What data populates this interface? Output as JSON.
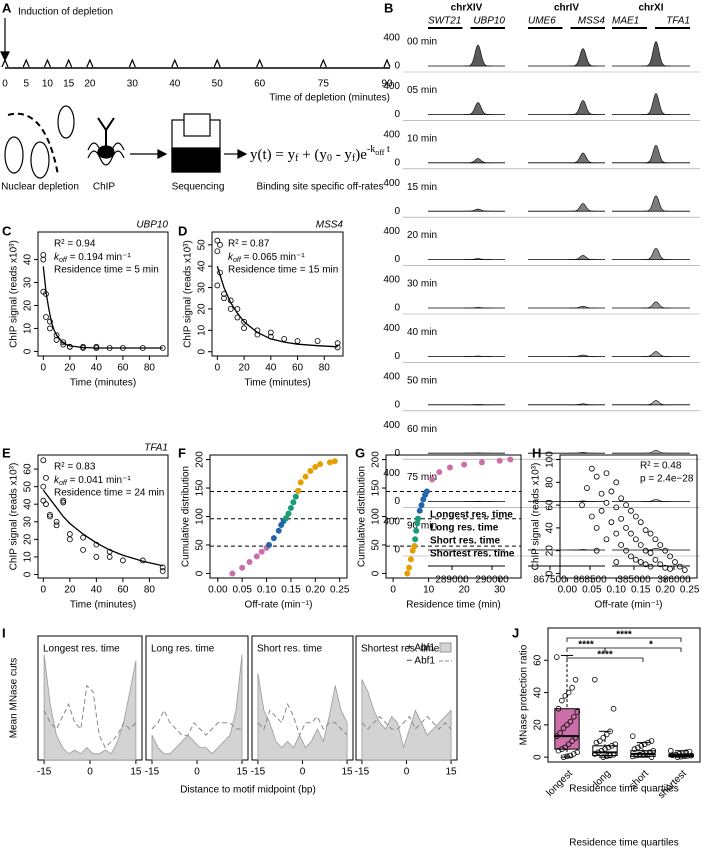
{
  "panel_labels": [
    "A",
    "B",
    "C",
    "D",
    "E",
    "F",
    "G",
    "H",
    "I",
    "J"
  ],
  "a": {
    "induction": "Induction of depletion",
    "xlim": [
      0,
      90
    ],
    "ticks": [
      0,
      5,
      10,
      15,
      20,
      30,
      40,
      50,
      60,
      75,
      90
    ],
    "axis_label": "Time of depletion (minutes)",
    "steps": [
      "Nuclear depletion",
      "ChIP",
      "Sequencing",
      "Binding site specific off-rates"
    ],
    "equation": [
      {
        "text": "y(t) = y"
      },
      {
        "text": "f",
        "pos": "sub"
      },
      {
        "text": " + (y"
      },
      {
        "text": "0",
        "pos": "sub"
      },
      {
        "text": " - y"
      },
      {
        "text": "f",
        "pos": "sub"
      },
      {
        "text": ")e"
      },
      {
        "text": "-k",
        "pos": "sup"
      },
      {
        "text": "off",
        "pos": "supsub"
      },
      {
        "text": " t",
        "pos": "sup"
      }
    ]
  },
  "b": {
    "chromosomes": [
      "chrXIV",
      "chrIV",
      "chrXI"
    ],
    "genes": [
      [
        "SWT21",
        "UBP10"
      ],
      [
        "UME6",
        "MSS4"
      ],
      [
        "MAE1",
        "TFA1"
      ]
    ],
    "ylim": [
      0,
      400
    ],
    "yticks": [
      0,
      400
    ],
    "xlims": [
      [
        288400,
        290325
      ],
      [
        866950,
        868875
      ],
      [
        384450,
        386400
      ]
    ],
    "xticks": [
      [
        289000,
        290000
      ],
      [
        867500,
        868500
      ],
      [
        385000,
        386000
      ]
    ],
    "peak_x": [
      289650,
      868325,
      385550
    ],
    "rows": [
      {
        "label": "00 min",
        "peaks": [
          300,
          250,
          350
        ]
      },
      {
        "label": "05 min",
        "peaks": [
          170,
          200,
          300
        ]
      },
      {
        "label": "10 min",
        "peaks": [
          60,
          140,
          250
        ]
      },
      {
        "label": "15 min",
        "peaks": [
          30,
          110,
          220
        ]
      },
      {
        "label": "20 min",
        "peaks": [
          15,
          60,
          160
        ]
      },
      {
        "label": "30 min",
        "peaks": [
          8,
          25,
          90
        ]
      },
      {
        "label": "40 min",
        "peaks": [
          5,
          20,
          70
        ]
      },
      {
        "label": "50 min",
        "peaks": [
          5,
          15,
          60
        ]
      },
      {
        "label": "60 min",
        "peaks": [
          5,
          12,
          40
        ]
      },
      {
        "label": "75 min",
        "peaks": [
          5,
          10,
          30
        ]
      },
      {
        "label": "90 min",
        "peaks": [
          5,
          8,
          25
        ]
      }
    ]
  },
  "c": {
    "gene": "UBP10",
    "xlabel": "Time (minutes)",
    "ylabel": "ChIP signal (reads x10³)",
    "r2": "R² = 0.94",
    "k": "k",
    "off": "off",
    "koff": " = 0.194 min⁻¹",
    "residence": "Residence time = 5 min",
    "xlim": [
      -4,
      94
    ],
    "ylim": [
      -2,
      52
    ],
    "xticks": [
      0,
      20,
      40,
      60,
      80
    ],
    "yticks": [
      0,
      10,
      20,
      30,
      40
    ],
    "points": {
      "x": [
        0,
        0,
        0,
        2,
        2,
        5,
        5,
        10,
        10,
        15,
        15,
        20,
        20,
        30,
        30,
        40,
        40,
        50,
        60,
        75,
        90
      ],
      "y": [
        42,
        40,
        26,
        25,
        15,
        13,
        10,
        7,
        5,
        4,
        3,
        2,
        2,
        2,
        1.5,
        2,
        1.5,
        1.5,
        1.5,
        1.5,
        1.5
      ]
    },
    "fit": {
      "x": [
        0,
        2,
        4,
        6,
        8,
        10,
        15,
        20,
        30,
        40,
        60,
        90
      ],
      "y": [
        37,
        26,
        19,
        13,
        9.5,
        7,
        3.6,
        2.4,
        1.7,
        1.5,
        1.5,
        1.5
      ]
    }
  },
  "d": {
    "gene": "MSS4",
    "xlabel": "Time (minutes)",
    "ylabel": "ChIP signal (reads x10³)",
    "r2": "R² = 0.87",
    "k": "k",
    "off": "off",
    "koff": " = 0.065 min⁻¹",
    "residence": "Residence time = 15 min",
    "xlim": [
      -4,
      94
    ],
    "ylim": [
      -2,
      56
    ],
    "xticks": [
      0,
      20,
      40,
      60,
      80
    ],
    "yticks": [
      0,
      10,
      20,
      30,
      40,
      50
    ],
    "points": {
      "x": [
        0,
        0,
        0,
        2,
        2,
        5,
        5,
        10,
        10,
        15,
        15,
        20,
        20,
        30,
        30,
        40,
        40,
        50,
        60,
        75,
        90,
        90
      ],
      "y": [
        52,
        47,
        31,
        50,
        37,
        27,
        25,
        24,
        20,
        20,
        16,
        14,
        11,
        8,
        10,
        7,
        9,
        6,
        5,
        5,
        2,
        4
      ]
    },
    "fit": {
      "x": [
        0,
        5,
        10,
        15,
        20,
        30,
        40,
        50,
        60,
        75,
        90
      ],
      "y": [
        40,
        30,
        23,
        18,
        14,
        9,
        6,
        4.5,
        3.5,
        2.8,
        2.3
      ]
    }
  },
  "e": {
    "gene": "TFA1",
    "xlabel": "Time (minutes)",
    "ylabel": "ChIP signal (reads x10³)",
    "r2": "R² = 0.83",
    "k": "k",
    "off": "off",
    "koff": " = 0.041 min⁻¹",
    "residence": "Residence time = 24 min",
    "xlim": [
      -4,
      94
    ],
    "ylim": [
      -2,
      68
    ],
    "xticks": [
      0,
      20,
      40,
      60,
      80
    ],
    "yticks": [
      0,
      10,
      20,
      30,
      40,
      50,
      60
    ],
    "points": {
      "x": [
        0,
        0,
        0,
        2,
        2,
        5,
        5,
        10,
        10,
        15,
        15,
        20,
        20,
        30,
        30,
        40,
        40,
        50,
        50,
        60,
        75,
        90,
        90
      ],
      "y": [
        65,
        50,
        42,
        55,
        40,
        34,
        33,
        30,
        28,
        41,
        42,
        23,
        20,
        21,
        14,
        17,
        10,
        10,
        13,
        8,
        8,
        4,
        2
      ]
    },
    "fit": {
      "x": [
        0,
        5,
        10,
        15,
        20,
        30,
        40,
        50,
        60,
        75,
        90
      ],
      "y": [
        48,
        43,
        38,
        33,
        29,
        23,
        18,
        14,
        11,
        7.5,
        5
      ]
    }
  },
  "f": {
    "xlabel": "Off-rate (min⁻¹)",
    "ylabel": "Cumulative distribution",
    "xlim": [
      -0.016,
      0.265
    ],
    "ylim": [
      -8,
      208
    ],
    "xticks": [
      {
        "value": 0,
        "label": "0.00"
      },
      {
        "value": 0.05,
        "label": "0.05"
      },
      {
        "value": 0.1,
        "label": "0.10"
      },
      {
        "value": 0.15,
        "label": "0.15"
      },
      {
        "value": 0.2,
        "label": "0.20"
      },
      {
        "value": 0.25,
        "label": "0.25"
      }
    ],
    "yticks": [
      0,
      50,
      100,
      150,
      200
    ],
    "hlines": [
      48,
      96,
      144
    ],
    "series": [
      {
        "color": "#cc6fa8",
        "x": [
          0.03,
          0.05,
          0.065,
          0.08,
          0.09,
          0.1,
          0.105
        ],
        "y": [
          0,
          10,
          20,
          30,
          38,
          45,
          50
        ]
      },
      {
        "color": "#2266aa",
        "x": [
          0.105,
          0.115,
          0.125,
          0.13,
          0.135,
          0.14
        ],
        "y": [
          50,
          62,
          75,
          85,
          92,
          97
        ]
      },
      {
        "color": "#1a9b79",
        "x": [
          0.14,
          0.145,
          0.15,
          0.155,
          0.16,
          0.165
        ],
        "y": [
          97,
          105,
          115,
          125,
          135,
          145
        ]
      },
      {
        "color": "#e69f00",
        "x": [
          0.165,
          0.17,
          0.18,
          0.19,
          0.2,
          0.21,
          0.23,
          0.24
        ],
        "y": [
          145,
          160,
          170,
          180,
          187,
          192,
          195,
          197
        ]
      }
    ]
  },
  "g": {
    "xlabel": "Residence time (min)",
    "ylabel": "Cumulative distribution",
    "xlim": [
      -2,
      36
    ],
    "ylim": [
      -8,
      208
    ],
    "xticks": [
      0,
      10,
      20,
      30
    ],
    "yticks": [
      0,
      50,
      100,
      150,
      200
    ],
    "hlines": [
      48,
      96,
      144
    ],
    "series": [
      {
        "name": "Longest res. time",
        "color": "#cc6fa8",
        "x": [
          9.5,
          11,
          13,
          16,
          20,
          25,
          30,
          33
        ],
        "y": [
          144,
          165,
          178,
          186,
          191,
          195,
          198,
          200
        ]
      },
      {
        "name": "Long res. time",
        "color": "#2266aa",
        "x": [
          7,
          7.5,
          8,
          8.5,
          9,
          9.5
        ],
        "y": [
          96,
          110,
          120,
          130,
          138,
          144
        ]
      },
      {
        "name": "Short res. time",
        "color": "#1a9b79",
        "x": [
          6,
          6.2,
          6.5,
          6.8,
          7
        ],
        "y": [
          48,
          60,
          75,
          88,
          96
        ]
      },
      {
        "name": "Shortest res. time",
        "color": "#e69f00",
        "x": [
          4,
          4.5,
          5,
          5.5,
          6
        ],
        "y": [
          0,
          10,
          25,
          40,
          48
        ]
      }
    ]
  },
  "h": {
    "xlabel": "Off-rate (min⁻¹)",
    "ylabel": "ChIP signal (reads x10³)",
    "r2": "R² = 0.48",
    "p": "p = 2.4e−28",
    "xlim": [
      -0.015,
      0.265
    ],
    "ylim": [
      -4,
      104
    ],
    "xticks": [
      {
        "value": 0,
        "label": "0.00"
      },
      {
        "value": 0.05,
        "label": "0.05"
      },
      {
        "value": 0.1,
        "label": "0.10"
      },
      {
        "value": 0.15,
        "label": "0.15"
      },
      {
        "value": 0.2,
        "label": "0.20"
      },
      {
        "value": 0.25,
        "label": "0.25"
      }
    ],
    "yticks": [
      0,
      20,
      40,
      60,
      80,
      100
    ],
    "points": {
      "x": [
        0.03,
        0.04,
        0.05,
        0.05,
        0.06,
        0.06,
        0.07,
        0.07,
        0.08,
        0.08,
        0.08,
        0.09,
        0.09,
        0.1,
        0.1,
        0.1,
        0.11,
        0.11,
        0.11,
        0.12,
        0.12,
        0.12,
        0.13,
        0.13,
        0.13,
        0.14,
        0.14,
        0.14,
        0.15,
        0.15,
        0.15,
        0.16,
        0.16,
        0.16,
        0.17,
        0.17,
        0.17,
        0.18,
        0.18,
        0.19,
        0.19,
        0.2,
        0.2,
        0.21,
        0.21,
        0.22,
        0.23,
        0.24,
        0.06,
        0.1
      ],
      "y": [
        60,
        75,
        92,
        50,
        85,
        40,
        70,
        55,
        88,
        62,
        30,
        72,
        45,
        80,
        58,
        35,
        66,
        48,
        25,
        60,
        40,
        20,
        55,
        35,
        15,
        50,
        30,
        12,
        45,
        25,
        10,
        38,
        20,
        8,
        35,
        18,
        6,
        30,
        12,
        25,
        8,
        20,
        5,
        15,
        4,
        10,
        6,
        3,
        20,
        10
      ]
    }
  },
  "i": {
    "ylabel": "Mean MNase cuts",
    "xlabel": "Distance to motif midpoint (bp)",
    "legend": [
      "+ Abf1",
      "− Abf1"
    ],
    "xlim": [
      -17,
      17
    ],
    "ylim": [
      0,
      100
    ],
    "xticks": [
      -15,
      0,
      15
    ],
    "x": [
      -15,
      -13,
      -11,
      -9,
      -7,
      -5,
      -3,
      -1,
      1,
      3,
      5,
      7,
      9,
      11,
      13,
      15
    ],
    "profiles": [
      {
        "title": "Longest res. time",
        "plus": [
          85,
          45,
          20,
          10,
          5,
          8,
          5,
          10,
          5,
          5,
          8,
          5,
          15,
          30,
          55,
          80
        ],
        "minus": [
          40,
          30,
          25,
          35,
          45,
          30,
          25,
          60,
          55,
          20,
          10,
          15,
          20,
          30,
          25,
          30
        ]
      },
      {
        "title": "Long res. time",
        "plus": [
          20,
          10,
          5,
          5,
          10,
          15,
          20,
          15,
          10,
          10,
          5,
          10,
          15,
          20,
          40,
          85
        ],
        "minus": [
          25,
          30,
          40,
          30,
          25,
          20,
          20,
          30,
          25,
          20,
          25,
          30,
          30,
          30,
          25,
          25
        ]
      },
      {
        "title": "Short res. time",
        "plus": [
          70,
          40,
          30,
          15,
          10,
          15,
          10,
          20,
          10,
          15,
          25,
          15,
          35,
          60,
          40,
          30
        ],
        "minus": [
          30,
          25,
          40,
          35,
          30,
          45,
          35,
          20,
          30,
          30,
          35,
          25,
          30,
          30,
          25,
          20
        ]
      },
      {
        "title": "Shortest res. time",
        "plus": [
          65,
          55,
          40,
          30,
          25,
          35,
          30,
          10,
          25,
          40,
          30,
          20,
          25,
          30,
          35,
          40
        ],
        "minus": [
          30,
          25,
          30,
          35,
          30,
          25,
          25,
          30,
          35,
          25,
          30,
          35,
          30,
          25,
          30,
          25
        ]
      }
    ]
  },
  "j": {
    "ylabel": "MNase protection ratio",
    "xlabel": "Residence time quartiles",
    "ylim": [
      -3,
      80
    ],
    "yticks": [
      0,
      20,
      40,
      60
    ],
    "categories": [
      "longest",
      "long",
      "short",
      "shortest"
    ],
    "box_color": "#cc6fa8",
    "boxes": [
      {
        "low": 0,
        "q1": 5,
        "median": 13,
        "q3": 30,
        "high": 63,
        "points": [
          62,
          48,
          43,
          40,
          38,
          35,
          30,
          28,
          25,
          22,
          20,
          18,
          15,
          13,
          12,
          10,
          8,
          6,
          5,
          4,
          3,
          2,
          1,
          0.5,
          0
        ]
      },
      {
        "low": 0,
        "q1": 1,
        "median": 3,
        "q3": 7,
        "high": 16,
        "points": [
          48,
          30,
          16,
          14,
          12,
          10,
          9,
          8,
          7,
          6,
          5,
          4,
          3,
          2,
          1.5,
          1,
          0.5,
          0
        ]
      },
      {
        "low": 0,
        "q1": 0.5,
        "median": 2,
        "q3": 4,
        "high": 9,
        "points": [
          13,
          10,
          9,
          8,
          7,
          6,
          5,
          4,
          3,
          2.5,
          2,
          1.5,
          1,
          0.5,
          0
        ]
      },
      {
        "low": 0,
        "q1": 0.3,
        "median": 1,
        "q3": 2,
        "high": 4,
        "points": [
          4,
          3.5,
          3,
          2.5,
          2,
          1.5,
          1.2,
          1,
          0.8,
          0.5,
          0.3,
          0
        ]
      }
    ],
    "significance": [
      "****",
      "****",
      "****",
      "*"
    ]
  }
}
